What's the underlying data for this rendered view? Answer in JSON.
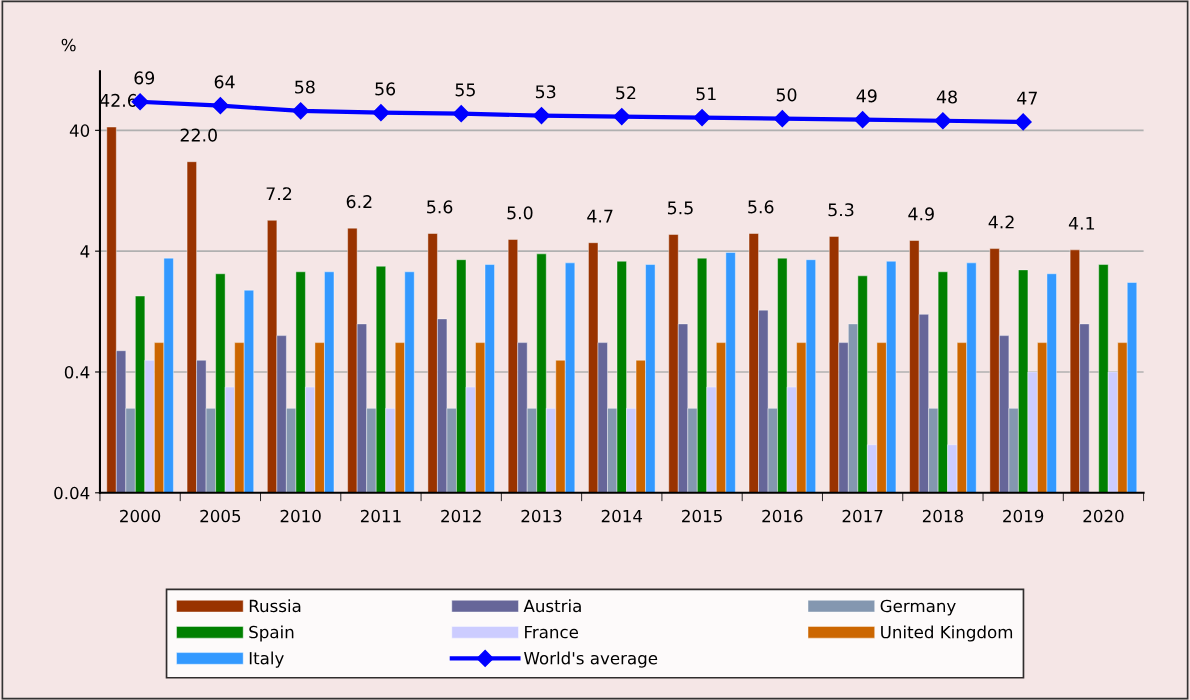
{
  "chart_data": {
    "type": "bar",
    "ylabel": "%",
    "log": "y",
    "ylim": [
      0.04,
      123
    ],
    "yticks": [
      0.04,
      0.4,
      4,
      40
    ],
    "grid": "y",
    "legend": "bottom",
    "categories": [
      "2000",
      "2005",
      "2010",
      "2011",
      "2012",
      "2013",
      "2014",
      "2015",
      "2016",
      "2017",
      "2018",
      "2019",
      "2020"
    ],
    "series": [
      {
        "name": "Russia",
        "color": "#993300",
        "values": [
          42.6,
          22.0,
          7.2,
          6.2,
          5.6,
          5.0,
          4.7,
          5.5,
          5.6,
          5.3,
          4.9,
          4.2,
          4.1
        ],
        "value_labels": [
          "42.6",
          "22.0",
          "7.2",
          "6.2",
          "5.6",
          "5.0",
          "4.7",
          "5.5",
          "5.6",
          "5.3",
          "4.9",
          "4.2",
          "4.1"
        ]
      },
      {
        "name": "Austria",
        "color": "#666699",
        "values": [
          0.6,
          0.5,
          0.8,
          1.0,
          1.1,
          0.7,
          0.7,
          1.0,
          1.3,
          0.7,
          1.2,
          0.8,
          1.0
        ]
      },
      {
        "name": "Germany",
        "color": "#8497b0",
        "values": [
          0.2,
          0.2,
          0.2,
          0.2,
          0.2,
          0.2,
          0.2,
          0.2,
          0.2,
          1.0,
          0.2,
          0.2,
          null
        ]
      },
      {
        "name": "Spain",
        "color": "#008000",
        "values": [
          1.7,
          2.6,
          2.7,
          3.0,
          3.4,
          3.8,
          3.3,
          3.5,
          3.5,
          2.5,
          2.7,
          2.8,
          3.1
        ]
      },
      {
        "name": "France",
        "color": "#ccccff",
        "values": [
          0.5,
          0.3,
          0.3,
          0.2,
          0.3,
          0.2,
          0.2,
          0.3,
          0.3,
          0.1,
          0.1,
          0.4,
          0.4
        ]
      },
      {
        "name": "United Kingdom",
        "color": "#cc6600",
        "values": [
          0.7,
          0.7,
          0.7,
          0.7,
          0.7,
          0.5,
          0.5,
          0.7,
          0.7,
          0.7,
          0.7,
          0.7,
          0.7
        ]
      },
      {
        "name": "Italy",
        "color": "#3399ff",
        "values": [
          3.5,
          1.9,
          2.7,
          2.7,
          3.1,
          3.2,
          3.1,
          3.9,
          3.4,
          3.3,
          3.2,
          2.6,
          2.2
        ]
      },
      {
        "name": "World's average",
        "type": "line",
        "marker": "diamond",
        "color": "#0000ff",
        "values": [
          69,
          64,
          58,
          56,
          55,
          53,
          52,
          51,
          50,
          49,
          48,
          47,
          null
        ],
        "value_labels": [
          "69",
          "64",
          "58",
          "56",
          "55",
          "53",
          "52",
          "51",
          "50",
          "49",
          "48",
          "47",
          null
        ]
      }
    ]
  }
}
